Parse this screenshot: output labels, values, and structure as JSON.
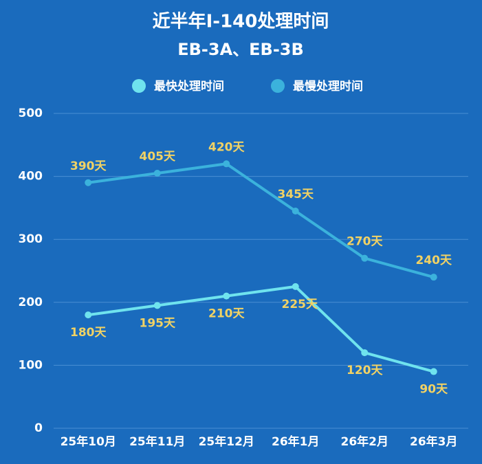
{
  "chart_data": {
    "type": "line",
    "title": "近半年I-140处理时间",
    "subtitle": "EB-3A、EB-3B",
    "categories": [
      "25年10月",
      "25年11月",
      "25年12月",
      "26年1月",
      "26年2月",
      "26年3月"
    ],
    "series": [
      {
        "name": "最快处理时间",
        "color": "#6fe3ee",
        "values": [
          180,
          195,
          210,
          225,
          120,
          90
        ],
        "value_labels": [
          "180天",
          "195天",
          "210天",
          "225天",
          "120天",
          "90天"
        ]
      },
      {
        "name": "最慢处理时间",
        "color": "#3bb2dc",
        "values": [
          390,
          405,
          420,
          345,
          270,
          240
        ],
        "value_labels": [
          "390天",
          "405天",
          "420天",
          "345天",
          "270天",
          "240天"
        ]
      }
    ],
    "ylim": [
      0,
      500
    ],
    "yticks": [
      0,
      100,
      200,
      300,
      400,
      500
    ],
    "grid": true,
    "legend": "top"
  }
}
